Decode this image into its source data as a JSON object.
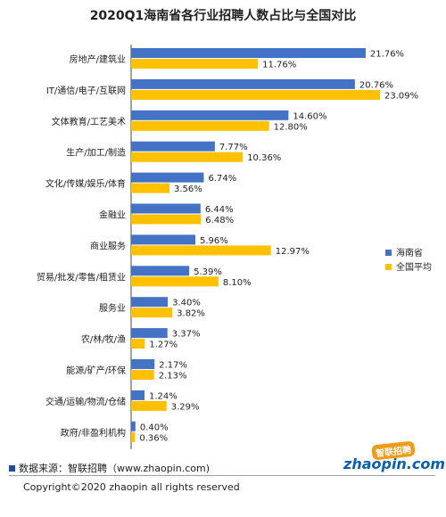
{
  "chart_data": {
    "type": "bar",
    "orientation": "horizontal",
    "title": "2020Q1海南省各行业招聘人数占比与全国对比",
    "categories": [
      "房地产/建筑业",
      "IT/通信/电子/互联网",
      "文体教育/工艺美术",
      "生产/加工/制造",
      "文化/传媒/娱乐/体育",
      "金融业",
      "商业服务",
      "贸易/批发/零售/租赁业",
      "服务业",
      "农/林/牧/渔",
      "能源/矿产/环保",
      "交通/运输/物流/仓储",
      "政府/非盈利机构"
    ],
    "series": [
      {
        "name": "海南省",
        "color": "#4472c4",
        "values": [
          21.76,
          20.76,
          14.6,
          7.77,
          6.74,
          6.44,
          5.96,
          5.39,
          3.4,
          3.37,
          2.17,
          1.24,
          0.4
        ],
        "labels": [
          "21.76%",
          "20.76%",
          "14.60%",
          "7.77%",
          "6.74%",
          "6.44%",
          "5.96%",
          "5.39%",
          "3.40%",
          "3.37%",
          "2.17%",
          "1.24%",
          "0.40%"
        ]
      },
      {
        "name": "全国平均",
        "color": "#ffc000",
        "values": [
          11.76,
          23.09,
          12.8,
          10.36,
          3.56,
          6.48,
          12.97,
          8.1,
          3.82,
          1.27,
          2.13,
          3.29,
          0.36
        ],
        "labels": [
          "11.76%",
          "23.09%",
          "12.80%",
          "10.36%",
          "3.56%",
          "6.48%",
          "12.97%",
          "8.10%",
          "3.82%",
          "1.27%",
          "2.13%",
          "3.29%",
          "0.36%"
        ]
      }
    ],
    "xlim": [
      0,
      24
    ],
    "grid": false,
    "legend_position": "right"
  },
  "footer": {
    "source": "数据来源：智联招聘（www.zhaopin.com)",
    "copyright": "Copyright©2020 zhaopin all rights reserved"
  },
  "logo": {
    "brand_cn": "智联招聘",
    "brand_en": "zhaopin.com"
  }
}
